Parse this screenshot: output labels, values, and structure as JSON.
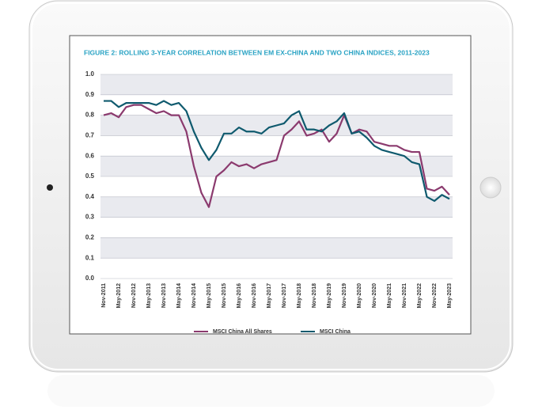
{
  "chart_data": {
    "type": "line",
    "title": "FIGURE 2: ROLLING 3-YEAR CORRELATION BETWEEN EM EX-CHINA AND TWO CHINA INDICES, 2011-2023",
    "categories": [
      "Nov-2011",
      null,
      "May-2012",
      null,
      "Nov-2012",
      null,
      "May-2013",
      null,
      "Nov-2013",
      null,
      "May-2014",
      null,
      "Nov-2014",
      null,
      "May-2015",
      null,
      "Nov-2015",
      null,
      "May-2016",
      null,
      "Nov-2016",
      null,
      "May-2017",
      null,
      "Nov-2017",
      null,
      "May-2018",
      null,
      "Nov-2018",
      null,
      "May-2019",
      null,
      "Nov-2019",
      null,
      "May-2020",
      null,
      "Nov-2020",
      null,
      "May-2021",
      null,
      "Nov-2021",
      null,
      "May-2022",
      null,
      "Nov-2022",
      null,
      "May-2023"
    ],
    "series": [
      {
        "name": "MSCI China All Shares",
        "color": "#8b3a6e",
        "values": [
          0.8,
          0.81,
          0.79,
          0.84,
          0.85,
          0.85,
          0.83,
          0.81,
          0.82,
          0.8,
          0.8,
          0.72,
          0.55,
          0.42,
          0.35,
          0.5,
          0.53,
          0.57,
          0.55,
          0.56,
          0.54,
          0.56,
          0.57,
          0.58,
          0.7,
          0.73,
          0.77,
          0.7,
          0.71,
          0.73,
          0.67,
          0.71,
          0.8,
          0.71,
          0.73,
          0.72,
          0.67,
          0.66,
          0.65,
          0.65,
          0.63,
          0.62,
          0.62,
          0.44,
          0.43,
          0.45,
          0.41
        ]
      },
      {
        "name": "MSCI China",
        "color": "#0f5a6e",
        "values": [
          0.87,
          0.87,
          0.84,
          0.86,
          0.86,
          0.86,
          0.86,
          0.85,
          0.87,
          0.85,
          0.86,
          0.82,
          0.72,
          0.64,
          0.58,
          0.63,
          0.71,
          0.71,
          0.74,
          0.72,
          0.72,
          0.71,
          0.74,
          0.75,
          0.76,
          0.8,
          0.82,
          0.73,
          0.73,
          0.72,
          0.75,
          0.77,
          0.81,
          0.71,
          0.72,
          0.69,
          0.65,
          0.63,
          0.62,
          0.61,
          0.6,
          0.57,
          0.56,
          0.4,
          0.38,
          0.41,
          0.39
        ]
      }
    ],
    "ylim": [
      0,
      1
    ],
    "yticks": [
      {
        "value": 0,
        "label": "0.0"
      },
      {
        "value": 0.1,
        "label": "0.1"
      },
      {
        "value": 0.2,
        "label": "0.2"
      },
      {
        "value": 0.3,
        "label": "0.3"
      },
      {
        "value": 0.4,
        "label": "0.4"
      },
      {
        "value": 0.5,
        "label": "0.5"
      },
      {
        "value": 0.6,
        "label": "0.6"
      },
      {
        "value": 0.7,
        "label": "0.7"
      },
      {
        "value": 0.8,
        "label": "0.8"
      },
      {
        "value": 0.9,
        "label": "0.9"
      },
      {
        "value": 1,
        "label": "1.0"
      }
    ],
    "grid": true
  }
}
